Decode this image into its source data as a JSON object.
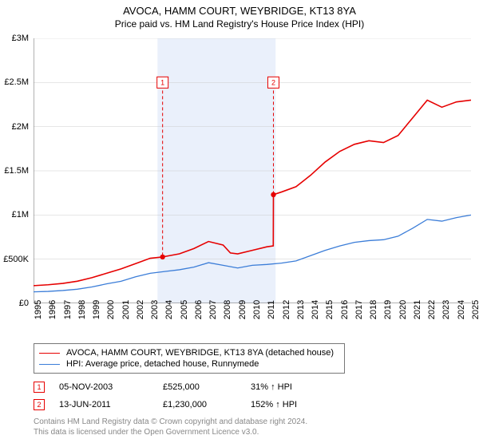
{
  "title": "AVOCA, HAMM COURT, WEYBRIDGE, KT13 8YA",
  "subtitle": "Price paid vs. HM Land Registry's House Price Index (HPI)",
  "chart": {
    "type": "line",
    "background_color": "#ffffff",
    "grid_color": "#cccccc",
    "axis_color": "#666666",
    "highlight_band": {
      "x_start": 2003.5,
      "x_end": 2011.6,
      "fill": "#eaf0fb"
    },
    "xlim": [
      1995,
      2025
    ],
    "ylim": [
      0,
      3000000
    ],
    "y_ticks": [
      0,
      500000,
      1000000,
      1500000,
      2000000,
      2500000,
      3000000
    ],
    "y_tick_labels": [
      "£0",
      "£500K",
      "£1M",
      "£1.5M",
      "£2M",
      "£2.5M",
      "£3M"
    ],
    "x_ticks": [
      1995,
      1996,
      1997,
      1998,
      1999,
      2000,
      2001,
      2002,
      2003,
      2004,
      2005,
      2006,
      2007,
      2008,
      2009,
      2010,
      2011,
      2012,
      2013,
      2014,
      2015,
      2016,
      2017,
      2018,
      2019,
      2020,
      2021,
      2022,
      2023,
      2024,
      2025
    ],
    "series": [
      {
        "name": "property",
        "label": "AVOCA, HAMM COURT, WEYBRIDGE, KT13 8YA (detached house)",
        "color": "#e60000",
        "line_width": 1.6,
        "data": [
          [
            1995,
            200000
          ],
          [
            1996,
            210000
          ],
          [
            1997,
            225000
          ],
          [
            1998,
            250000
          ],
          [
            1999,
            290000
          ],
          [
            2000,
            340000
          ],
          [
            2001,
            390000
          ],
          [
            2002,
            450000
          ],
          [
            2003,
            510000
          ],
          [
            2003.85,
            525000
          ],
          [
            2004,
            530000
          ],
          [
            2005,
            560000
          ],
          [
            2006,
            620000
          ],
          [
            2007,
            700000
          ],
          [
            2008,
            660000
          ],
          [
            2008.5,
            570000
          ],
          [
            2009,
            560000
          ],
          [
            2010,
            600000
          ],
          [
            2011,
            640000
          ],
          [
            2011.44,
            650000
          ],
          [
            2011.45,
            1230000
          ],
          [
            2012,
            1260000
          ],
          [
            2013,
            1320000
          ],
          [
            2014,
            1450000
          ],
          [
            2015,
            1600000
          ],
          [
            2016,
            1720000
          ],
          [
            2017,
            1800000
          ],
          [
            2018,
            1840000
          ],
          [
            2019,
            1820000
          ],
          [
            2020,
            1900000
          ],
          [
            2021,
            2100000
          ],
          [
            2022,
            2300000
          ],
          [
            2023,
            2220000
          ],
          [
            2024,
            2280000
          ],
          [
            2025,
            2300000
          ]
        ]
      },
      {
        "name": "hpi",
        "label": "HPI: Average price, detached house, Runnymede",
        "color": "#3b7dd8",
        "line_width": 1.3,
        "data": [
          [
            1995,
            130000
          ],
          [
            1996,
            135000
          ],
          [
            1997,
            145000
          ],
          [
            1998,
            160000
          ],
          [
            1999,
            185000
          ],
          [
            2000,
            220000
          ],
          [
            2001,
            250000
          ],
          [
            2002,
            300000
          ],
          [
            2003,
            340000
          ],
          [
            2004,
            360000
          ],
          [
            2005,
            380000
          ],
          [
            2006,
            410000
          ],
          [
            2007,
            460000
          ],
          [
            2008,
            430000
          ],
          [
            2009,
            400000
          ],
          [
            2010,
            430000
          ],
          [
            2011,
            440000
          ],
          [
            2012,
            455000
          ],
          [
            2013,
            480000
          ],
          [
            2014,
            540000
          ],
          [
            2015,
            600000
          ],
          [
            2016,
            650000
          ],
          [
            2017,
            690000
          ],
          [
            2018,
            710000
          ],
          [
            2019,
            720000
          ],
          [
            2020,
            760000
          ],
          [
            2021,
            850000
          ],
          [
            2022,
            950000
          ],
          [
            2023,
            930000
          ],
          [
            2024,
            970000
          ],
          [
            2025,
            1000000
          ]
        ]
      }
    ],
    "sale_markers": [
      {
        "n": "1",
        "x": 2003.85,
        "y": 525000,
        "color": "#e60000",
        "label_y": 2500000,
        "dash": "4,3"
      },
      {
        "n": "2",
        "x": 2011.45,
        "y": 1230000,
        "color": "#e60000",
        "label_y": 2500000,
        "dash": "4,3"
      }
    ]
  },
  "legend": {
    "items": [
      {
        "color": "#e60000",
        "width": 1.6,
        "label_key": "chart.series.0.label"
      },
      {
        "color": "#3b7dd8",
        "width": 1.3,
        "label_key": "chart.series.1.label"
      }
    ]
  },
  "sales": [
    {
      "n": "1",
      "date": "05-NOV-2003",
      "price": "£525,000",
      "hpi": "31% ↑ HPI",
      "color": "#e60000"
    },
    {
      "n": "2",
      "date": "13-JUN-2011",
      "price": "£1,230,000",
      "hpi": "152% ↑ HPI",
      "color": "#e60000"
    }
  ],
  "footer": {
    "line1": "Contains HM Land Registry data © Crown copyright and database right 2024.",
    "line2": "This data is licensed under the Open Government Licence v3.0."
  }
}
